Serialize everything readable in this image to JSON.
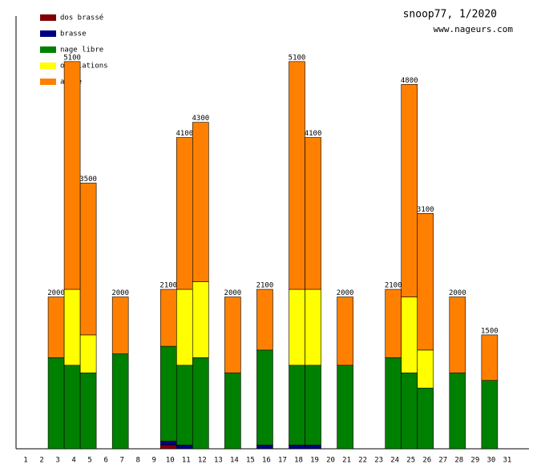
{
  "chart_data": {
    "type": "stacked_bar",
    "title": "snoop77, 1/2020",
    "subtitle": "www.nageurs.com",
    "categories": [
      "1",
      "2",
      "3",
      "4",
      "5",
      "6",
      "7",
      "8",
      "9",
      "10",
      "11",
      "12",
      "13",
      "14",
      "15",
      "16",
      "17",
      "18",
      "19",
      "20",
      "21",
      "22",
      "23",
      "24",
      "25",
      "26",
      "27",
      "28",
      "29",
      "30",
      "31"
    ],
    "series": [
      {
        "name": "dos brassé",
        "color": "#7f0000",
        "values": [
          null,
          null,
          null,
          null,
          null,
          null,
          null,
          null,
          null,
          50,
          null,
          null,
          null,
          null,
          null,
          null,
          null,
          null,
          null,
          null,
          null,
          null,
          null,
          null,
          null,
          null,
          null,
          null,
          null,
          null,
          null
        ]
      },
      {
        "name": "brasse",
        "color": "#000080",
        "values": [
          null,
          null,
          null,
          null,
          null,
          null,
          null,
          null,
          null,
          50,
          50,
          null,
          null,
          null,
          null,
          50,
          null,
          50,
          50,
          null,
          null,
          null,
          null,
          null,
          null,
          null,
          null,
          null,
          null,
          null,
          null
        ]
      },
      {
        "name": "nage libre",
        "color": "#008000",
        "values": [
          null,
          null,
          1200,
          1100,
          1000,
          null,
          1250,
          null,
          null,
          1250,
          1050,
          1200,
          null,
          1000,
          null,
          1250,
          null,
          1050,
          1050,
          null,
          1100,
          null,
          null,
          1200,
          1000,
          800,
          null,
          1000,
          null,
          900,
          null
        ]
      },
      {
        "name": "ondulations",
        "color": "#ffff00",
        "values": [
          null,
          null,
          null,
          1000,
          500,
          null,
          null,
          null,
          null,
          null,
          1000,
          1000,
          null,
          null,
          null,
          null,
          null,
          1000,
          1000,
          null,
          null,
          null,
          null,
          null,
          1000,
          500,
          null,
          null,
          null,
          null,
          null
        ]
      },
      {
        "name": "autre",
        "color": "#ff8000",
        "values": [
          null,
          null,
          800,
          3000,
          2000,
          null,
          750,
          null,
          null,
          750,
          2000,
          2100,
          null,
          1000,
          null,
          800,
          null,
          3000,
          2000,
          null,
          900,
          null,
          null,
          900,
          2800,
          1800,
          null,
          1000,
          null,
          600,
          null
        ]
      }
    ],
    "totals": [
      null,
      null,
      2000,
      5100,
      3500,
      null,
      2000,
      null,
      null,
      2100,
      4100,
      4300,
      null,
      2000,
      null,
      2100,
      null,
      5100,
      4100,
      null,
      2000,
      null,
      null,
      2100,
      4800,
      3100,
      null,
      2000,
      null,
      1500,
      null
    ],
    "ylim": [
      0,
      5700
    ]
  }
}
